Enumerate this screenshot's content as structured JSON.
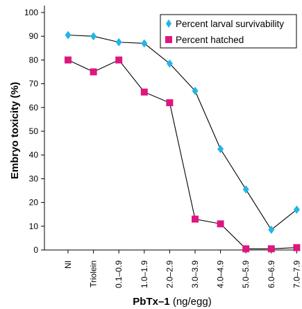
{
  "chart_data": {
    "type": "line",
    "ylabel": "Embryo toxicity (%)",
    "xlabel_main": "PbTx–1",
    "xlabel_unit": "(ng/egg)",
    "categories": [
      "NI",
      "Triolein",
      "0.1–0.9",
      "1.0–1.9",
      "2.0–2.9",
      "3.0–3.9",
      "4.0–4.9",
      "5.0–5.9",
      "6.0–6.9",
      "7.0–7.9"
    ],
    "ylim": [
      0,
      100
    ],
    "yticks": [
      "0",
      "10",
      "20",
      "30",
      "40",
      "50",
      "60",
      "70",
      "80",
      "90",
      "100"
    ],
    "grid": false,
    "legend_position": "top-right",
    "series": [
      {
        "name": "Percent larval survivability",
        "marker": "diamond",
        "color": "#23b5e6",
        "values": [
          90.5,
          90.0,
          87.5,
          87.0,
          78.5,
          67.0,
          42.5,
          25.5,
          8.5,
          17.0
        ]
      },
      {
        "name": "Percent hatched",
        "marker": "square",
        "color": "#e01580",
        "values": [
          80.0,
          75.0,
          80.0,
          66.5,
          62.0,
          13.0,
          11.0,
          0.5,
          0.5,
          1.0
        ]
      }
    ]
  }
}
